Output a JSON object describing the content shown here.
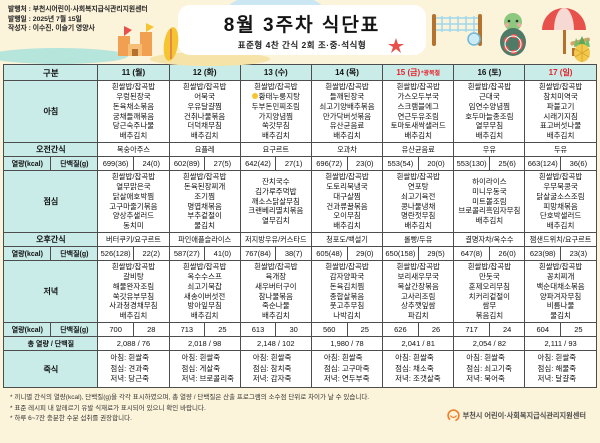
{
  "meta": {
    "publisher": "발행처 : 부천시어린이·사회복지급식관리지원센터",
    "publish_date": "발행일 : 2025년 7월 15일",
    "author": "작성자 : 이수진, 이슬기 영양사"
  },
  "title": "8월 3주차 식단표",
  "subtitle": "표준형 4찬 간식 2회 조·중·석식형",
  "colors": {
    "label_teal": "#C9ECE9",
    "holiday_red": "#E8222A",
    "allergy_yellow": "#F5C531",
    "banner_cream": "#FBF3DA",
    "logo_orange": "#F07E26"
  },
  "banner_decorations": [
    "sandcastle-icon",
    "surfboard-icon",
    "volleyball-net-icon",
    "beach-ball-icon",
    "turtle-mascot-icon",
    "beach-umbrella-icon",
    "beach-chair-icon",
    "pineapple-icon",
    "starfish-icon"
  ],
  "table": {
    "corner_label": "구분",
    "rows": [
      {
        "type": "menu",
        "key": "breakfast",
        "label": "아침"
      },
      {
        "type": "single",
        "key": "am_snack",
        "label": "오전간식"
      },
      {
        "type": "split",
        "key": "breakfast_nut",
        "label1": "열량(kcal)",
        "label2": "단백질(g)"
      },
      {
        "type": "menu",
        "key": "lunch",
        "label": "점심"
      },
      {
        "type": "single",
        "key": "pm_snack",
        "label": "오후간식"
      },
      {
        "type": "split",
        "key": "lunch_nut",
        "label1": "열량(kcal)",
        "label2": "단백질(g)"
      },
      {
        "type": "menu",
        "key": "dinner",
        "label": "저녁"
      },
      {
        "type": "split",
        "key": "dinner_nut",
        "label1": "열량(kcal)",
        "label2": "단백질(g)"
      },
      {
        "type": "total",
        "key": "total",
        "label": "총 열량 / 단백질"
      },
      {
        "type": "porridge",
        "key": "porridge",
        "label": "죽식"
      }
    ],
    "days": [
      {
        "label": "11 (월)",
        "holiday": false,
        "breakfast": [
          "흰쌀밥/잡곡밥",
          "우렁된장국",
          "돈육채소볶음",
          "궁채들깨볶음",
          "당근숙주나물",
          "배추김치"
        ],
        "am_snack": "복숭아주스",
        "breakfast_nut": [
          "699(36)",
          "24(0)"
        ],
        "lunch": [
          "흰쌀밥/잡곡밥",
          "열무맑은국",
          "닭살애호박찜",
          "고구마줄기볶음",
          "양상추샐러드",
          "동치미"
        ],
        "pm_snack": "버터쿠키/요구르트",
        "lunch_nut": [
          "526(128)",
          "22(2)"
        ],
        "dinner": [
          "흰쌀밥/잡곡밥",
          "갈비탕",
          "해물완자조림",
          "쑥갓유부무침",
          "사과청경채무침",
          "배추김치"
        ],
        "dinner_nut": [
          "700",
          "28"
        ],
        "total": "2,088 / 76",
        "porridge": [
          "아침: 흰쌀죽",
          "점심: 견과죽",
          "저녁: 당근죽"
        ]
      },
      {
        "label": "12 (화)",
        "holiday": false,
        "breakfast": [
          "흰쌀밥/잡곡밥",
          "어묵국",
          "우유달걀찜",
          "건취나물볶음",
          "더덕채무침",
          "배추김치"
        ],
        "am_snack": "요플레",
        "breakfast_nut": [
          "602(89)",
          "27(5)"
        ],
        "lunch": [
          "흰쌀밥/잡곡밥",
          "돈육된장찌개",
          "조기찜",
          "명엽채볶음",
          "부추겉절이",
          "물김치"
        ],
        "pm_snack": "파인애플슬라이스",
        "lunch_nut": [
          "587(27)",
          "41(0)"
        ],
        "dinner": [
          "흰쌀밥/잡곡밥",
          "옥수수스프",
          "쇠고기묵찹",
          "새송이버섯전",
          "방아잎무침",
          "배추김치"
        ],
        "dinner_nut": [
          "713",
          "25"
        ],
        "total": "2,018 / 98",
        "porridge": [
          "아침: 흰쌀죽",
          "점심: 게살죽",
          "저녁: 브로콜리죽"
        ]
      },
      {
        "label": "13 (수)",
        "holiday": false,
        "breakfast": [
          "흰쌀밥/잡곡밥",
          {
            "text": "황태누룽지탕",
            "icon": "allergy-dot"
          },
          "두부돈민찌조림",
          "가지양념찜",
          "쑥갓무침",
          "배추김치"
        ],
        "am_snack": "요구르트",
        "breakfast_nut": [
          "642(42)",
          "27(1)"
        ],
        "lunch": [
          "잔치국수",
          "김가루주먹밥",
          "깨소스닭살무침",
          "크랜베리멸치볶음",
          "열무김치"
        ],
        "pm_snack": "저지방우유/커스타드",
        "lunch_nut": [
          "767(84)",
          "38(7)"
        ],
        "dinner": [
          "흰쌀밥/잡곡밥",
          "육개장",
          "새우버터구이",
          "참나물볶음",
          "죽순나물",
          "배추김치"
        ],
        "dinner_nut": [
          "613",
          "30"
        ],
        "total": "2,148 / 102",
        "porridge": [
          "아침: 흰쌀죽",
          "점심: 참치죽",
          "저녁: 감자죽"
        ]
      },
      {
        "label": "14 (목)",
        "holiday": false,
        "breakfast": [
          "흰쌀밥/잡곡밥",
          "들깨된장국",
          "쇠고기양배추볶음",
          "만가닥버섯볶음",
          "유산균음료",
          "배추김치"
        ],
        "am_snack": "오과차",
        "breakfast_nut": [
          "696(72)",
          "23(0)"
        ],
        "lunch": [
          "흰쌀밥/잡곡밥",
          "도토리묵냉국",
          "대구살찜",
          "건과류꿀볶음",
          "오이무침",
          "배추김치"
        ],
        "pm_snack": "청포도/백설기",
        "lunch_nut": [
          "605(48)",
          "29(0)"
        ],
        "dinner": [
          "흰쌀밥/잡곡밥",
          "감자양파국",
          "돈육김치찜",
          "종합살볶음",
          "풋고추무침",
          "나박김치"
        ],
        "dinner_nut": [
          "560",
          "25"
        ],
        "total": "1,980 / 78",
        "porridge": [
          "아침: 흰쌀죽",
          "점심: 고구마죽",
          "저녁: 연두부죽"
        ]
      },
      {
        "label": "15 (금)",
        "note": "*광복절",
        "holiday": true,
        "breakfast": [
          "흰쌀밥/잡곡밥",
          "가스오두부국",
          "스크램블에그",
          "연근두유조림",
          "토마토새싹샐러드",
          "배추김치"
        ],
        "am_snack": "유산균음료",
        "breakfast_nut": [
          "553(54)",
          "20(0)"
        ],
        "lunch": [
          "흰쌀밥/잡곡밥",
          "연포탕",
          "쇠고기육전",
          "콩나물냉채",
          "명란젓무침",
          "배추김치"
        ],
        "pm_snack": "롤빵/두유",
        "lunch_nut": [
          "650(158)",
          "29(5)"
        ],
        "dinner": [
          "흰쌀밥/잡곡밥",
          "보리새우무국",
          "목살간장볶음",
          "고사리조림",
          "상추깻잎쌈",
          "파김치"
        ],
        "dinner_nut": [
          "626",
          "26"
        ],
        "total": "2,041 / 81",
        "porridge": [
          "아침: 흰쌀죽",
          "점심: 채소죽",
          "저녁: 조갯살죽"
        ]
      },
      {
        "label": "16 (토)",
        "holiday": false,
        "breakfast": [
          "흰쌀밥/잡곡밥",
          "근대국",
          "임연수양념찜",
          "호두마늘종조림",
          "열무무침",
          "배추김치"
        ],
        "am_snack": "우유",
        "breakfast_nut": [
          "553(130)",
          "25(6)"
        ],
        "lunch": [
          "하이라이스",
          "미니우동국",
          "미트볼조림",
          "브로콜리흑임자무침",
          "배추김치"
        ],
        "pm_snack": "결명자차/옥수수",
        "lunch_nut": [
          "647(8)",
          "26(0)"
        ],
        "dinner": [
          "흰쌀밥/잡곡밥",
          "만둣국",
          "훈제오리무침",
          "치커리겉절이",
          "쌈무",
          "볶음김치"
        ],
        "dinner_nut": [
          "717",
          "24"
        ],
        "total": "2,054 / 82",
        "porridge": [
          "아침: 흰쌀죽",
          "점심: 쇠고기죽",
          "저녁: 북어죽"
        ]
      },
      {
        "label": "17 (일)",
        "holiday": true,
        "breakfast": [
          "흰쌀밥/잡곡밥",
          "참치미역국",
          "파불고기",
          "시래기지짐",
          "표고버섯나물",
          "배추김치"
        ],
        "am_snack": "두유",
        "breakfast_nut": [
          "663(124)",
          "36(6)"
        ],
        "lunch": [
          "흰쌀밥/잡곡밥",
          "우무묵콩국",
          "닭살굴소스조림",
          "피망채볶음",
          "단호박샐러드",
          "배추김치"
        ],
        "pm_snack": "잼샌드위치/요구르트",
        "lunch_nut": [
          "623(98)",
          "23(3)"
        ],
        "dinner": [
          "흰쌀밥/잡곡밥",
          "꽁치찌개",
          "백순대채소볶음",
          "양파겨자무침",
          "비름나물",
          "물김치"
        ],
        "dinner_nut": [
          "604",
          "25"
        ],
        "total": "2,111 / 93",
        "porridge": [
          "아침: 흰쌀죽",
          "점심: 해물죽",
          "저녁: 달걀죽"
        ]
      }
    ]
  },
  "notes": [
    "* 끼니별 간식의 열량(kcal), 단백질(g)을 각각 표시하였으며, 총 열량 / 단백질은 산출 프로그램의 소수점 단위로 차이가 날 수 있습니다.",
    "* 표준 레시피 내 알레르기 유발 식재료가 표시되어 있으니 확인 바랍니다.",
    "* 하루 6~7잔 충분한 수분 섭취를 권장합니다."
  ],
  "footer_org": "부천시 어린이·사회복지급식관리지원센터"
}
